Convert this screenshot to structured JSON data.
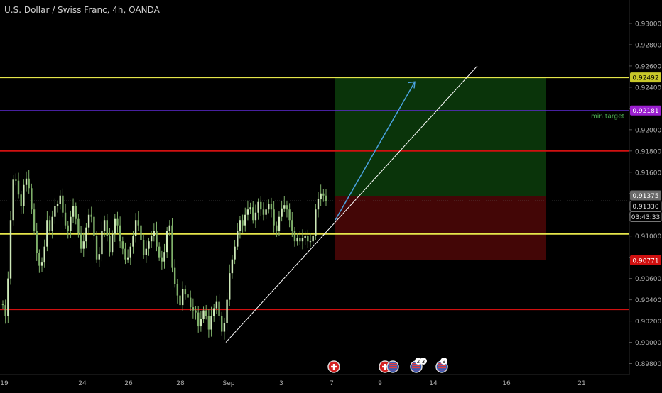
{
  "header": {
    "title": "U.S. Dollar / Swiss Franc, 4h, OANDA"
  },
  "colors": {
    "background": "#000000",
    "candle_up": "#cde8b8",
    "candle_down": "#7fb06a",
    "yellow_line": "#e5e54a",
    "red_line": "#d01010",
    "purple_line": "#5f2bd4",
    "profit_zone": "#0b3a0b",
    "loss_zone": "#4a0707",
    "trend_line": "#ffffff",
    "arrow": "#4aa3df"
  },
  "chart_data": {
    "type": "candlestick",
    "title": "U.S. Dollar / Swiss Franc, 4h, OANDA",
    "ylim": [
      0.8975,
      0.931
    ],
    "y_ticks": [
      "0.93000",
      "0.92800",
      "0.92600",
      "0.92400",
      "0.92200",
      "0.92000",
      "0.91800",
      "0.91600",
      "0.91400",
      "0.91200",
      "0.91000",
      "0.90800",
      "0.90600",
      "0.90400",
      "0.90200",
      "0.90000",
      "0.89800"
    ],
    "x_labels": [
      "19",
      "24",
      "26",
      "28",
      "Sep",
      "3",
      "7",
      "9",
      "14",
      "16",
      "21"
    ],
    "horizontal_lines": [
      {
        "name": "resistance-yellow",
        "price": 0.92492,
        "label": "0.92492",
        "color": "#e5e54a"
      },
      {
        "name": "min-target",
        "price": 0.92181,
        "label": "0.92181",
        "color": "#5f2bd4",
        "text": "min target"
      },
      {
        "name": "resistance-red",
        "price": 0.918,
        "color": "#d01010"
      },
      {
        "name": "support-yellow",
        "price": 0.9102,
        "color": "#e5e54a"
      },
      {
        "name": "support-red",
        "price": 0.9031,
        "color": "#d01010"
      }
    ],
    "price_labels": {
      "current_price": "0.91330",
      "countdown": "03:43:33",
      "entry": "0.91375",
      "stop": "0.90771"
    },
    "position": {
      "entry": 0.91375,
      "target": 0.92492,
      "stop": 0.90771
    },
    "trend_line": {
      "start_price": 0.9,
      "end_price": 0.926
    },
    "projection_arrow": {
      "start_price": 0.9115,
      "end_price": 0.9245
    },
    "events_row": {
      "labels": [
        "2",
        "3",
        "9"
      ]
    },
    "candles_close": [
      0.9035,
      0.9025,
      0.906,
      0.9115,
      0.9153,
      0.9152,
      0.9139,
      0.9128,
      0.9148,
      0.9154,
      0.9145,
      0.9125,
      0.9105,
      0.9084,
      0.9072,
      0.9075,
      0.909,
      0.9115,
      0.9105,
      0.9118,
      0.9128,
      0.913,
      0.9138,
      0.9122,
      0.911,
      0.9105,
      0.9118,
      0.9128,
      0.9116,
      0.9103,
      0.9088,
      0.9095,
      0.9108,
      0.912,
      0.9118,
      0.91,
      0.9078,
      0.9083,
      0.9105,
      0.9115,
      0.91,
      0.9085,
      0.9102,
      0.9116,
      0.911,
      0.9095,
      0.9088,
      0.9078,
      0.908,
      0.909,
      0.91,
      0.9115,
      0.911,
      0.9096,
      0.9082,
      0.9088,
      0.9095,
      0.91,
      0.9105,
      0.909,
      0.908,
      0.9076,
      0.9085,
      0.9105,
      0.911,
      0.907,
      0.9055,
      0.9044,
      0.9035,
      0.905,
      0.9045,
      0.9042,
      0.9033,
      0.903,
      0.9028,
      0.9015,
      0.9022,
      0.903,
      0.9025,
      0.9012,
      0.9025,
      0.9032,
      0.9038,
      0.9025,
      0.901,
      0.9018,
      0.904,
      0.9065,
      0.9078,
      0.909,
      0.9105,
      0.9115,
      0.911,
      0.912,
      0.9125,
      0.9127,
      0.9115,
      0.9122,
      0.9132,
      0.9125,
      0.912,
      0.9125,
      0.913,
      0.9125,
      0.911,
      0.9105,
      0.9118,
      0.9126,
      0.9129,
      0.9125,
      0.9115,
      0.9105,
      0.9095,
      0.9098,
      0.9095,
      0.9098,
      0.91,
      0.9095,
      0.9095,
      0.91,
      0.9125,
      0.9135,
      0.914,
      0.9138,
      0.9133
    ]
  }
}
